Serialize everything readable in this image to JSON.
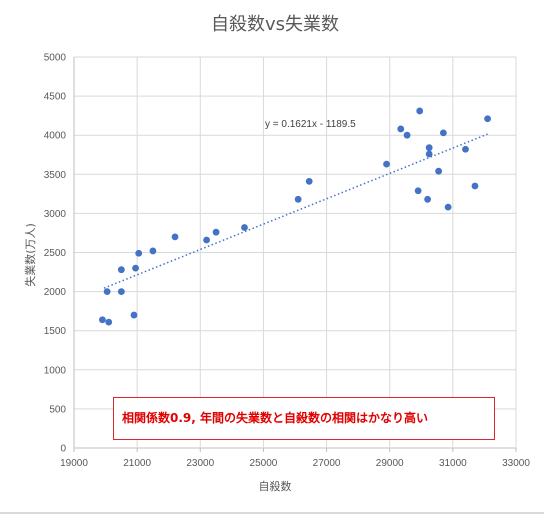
{
  "chart_data": {
    "type": "scatter",
    "title": "自殺数vs失業数",
    "xlabel": "自殺数",
    "ylabel": "失業数(万人)",
    "xlim": [
      19000,
      33000
    ],
    "ylim": [
      0,
      5000
    ],
    "xticks": [
      19000,
      21000,
      23000,
      25000,
      27000,
      29000,
      31000,
      33000
    ],
    "yticks": [
      0,
      500,
      1000,
      1500,
      2000,
      2500,
      3000,
      3500,
      4000,
      4500,
      5000
    ],
    "grid": true,
    "legend": "none",
    "points": [
      {
        "x": 19900,
        "y": 1640
      },
      {
        "x": 20100,
        "y": 1610
      },
      {
        "x": 20050,
        "y": 2000
      },
      {
        "x": 20500,
        "y": 2000
      },
      {
        "x": 20500,
        "y": 2280
      },
      {
        "x": 20900,
        "y": 1700
      },
      {
        "x": 20950,
        "y": 2300
      },
      {
        "x": 21050,
        "y": 2490
      },
      {
        "x": 21500,
        "y": 2520
      },
      {
        "x": 22200,
        "y": 2700
      },
      {
        "x": 23200,
        "y": 2660
      },
      {
        "x": 23500,
        "y": 2760
      },
      {
        "x": 24400,
        "y": 2820
      },
      {
        "x": 26100,
        "y": 3180
      },
      {
        "x": 26450,
        "y": 3410
      },
      {
        "x": 28900,
        "y": 3630
      },
      {
        "x": 29350,
        "y": 4080
      },
      {
        "x": 29550,
        "y": 4000
      },
      {
        "x": 29900,
        "y": 3290
      },
      {
        "x": 29950,
        "y": 4310
      },
      {
        "x": 30200,
        "y": 3180
      },
      {
        "x": 30250,
        "y": 3760
      },
      {
        "x": 30250,
        "y": 3840
      },
      {
        "x": 30550,
        "y": 3540
      },
      {
        "x": 30700,
        "y": 4030
      },
      {
        "x": 30850,
        "y": 3080
      },
      {
        "x": 31400,
        "y": 3820
      },
      {
        "x": 31700,
        "y": 3350
      },
      {
        "x": 32100,
        "y": 4210
      }
    ],
    "trendline": {
      "slope": 0.1621,
      "intercept": -1189.5,
      "x_from": 19950,
      "x_to": 32100,
      "equation": "y = 0.1621x - 1189.5"
    },
    "annotation": "相関係数0.9, 年間の失業数と自殺数の相関はかなり高い",
    "colors": {
      "marker": "#4472c4",
      "trend": "#4472c4",
      "grid": "#d9d9d9",
      "annotation": "#e10000",
      "annotation_border": "#d9272e"
    }
  }
}
